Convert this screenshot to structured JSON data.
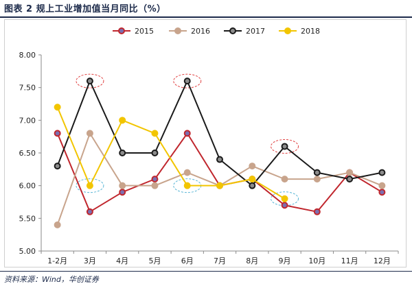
{
  "header": {
    "title": "图表 2  规上工业增加值当月同比（%）"
  },
  "footer": {
    "source": "资料来源：Wind，华创证券"
  },
  "chart_data": {
    "type": "line",
    "title": "规上工业增加值当月同比（%）",
    "xlabel": "",
    "ylabel": "",
    "categories": [
      "1-2月",
      "3月",
      "4月",
      "5月",
      "6月",
      "7月",
      "8月",
      "9月",
      "10月",
      "11月",
      "12月"
    ],
    "y_ticks": [
      "5.00",
      "5.50",
      "6.00",
      "6.50",
      "7.00",
      "7.50",
      "8.00"
    ],
    "ylim": [
      5.0,
      8.0
    ],
    "grid": false,
    "legend_position": "top",
    "series": [
      {
        "name": "2015",
        "color": "#c0262d",
        "marker_fill": "#7b6fb0",
        "values": [
          6.8,
          5.6,
          5.9,
          6.1,
          6.8,
          6.0,
          6.1,
          5.7,
          5.6,
          6.2,
          5.9
        ]
      },
      {
        "name": "2016",
        "color": "#c8a48c",
        "marker_fill": "#c8a48c",
        "values": [
          5.4,
          6.8,
          6.0,
          6.0,
          6.2,
          6.0,
          6.3,
          6.1,
          6.1,
          6.2,
          6.0
        ]
      },
      {
        "name": "2017",
        "color": "#1a1a1a",
        "marker_fill": "#8c8c8c",
        "values": [
          6.3,
          7.6,
          6.5,
          6.5,
          7.6,
          6.4,
          6.0,
          6.6,
          6.2,
          6.1,
          6.2
        ]
      },
      {
        "name": "2018",
        "color": "#f2c500",
        "marker_fill": "#f2c500",
        "values": [
          7.2,
          6.0,
          7.0,
          6.8,
          6.0,
          6.0,
          6.1,
          5.8,
          null,
          null,
          null
        ]
      }
    ],
    "highlights": [
      {
        "category": "3月",
        "value": 7.6,
        "color": "#e04040"
      },
      {
        "category": "6月",
        "value": 7.6,
        "color": "#e04040"
      },
      {
        "category": "9月",
        "value": 6.6,
        "color": "#e04040"
      },
      {
        "category": "3月",
        "value": 6.0,
        "color": "#5ab6d6"
      },
      {
        "category": "6月",
        "value": 6.0,
        "color": "#5ab6d6"
      },
      {
        "category": "9月",
        "value": 5.8,
        "color": "#5ab6d6"
      }
    ]
  }
}
